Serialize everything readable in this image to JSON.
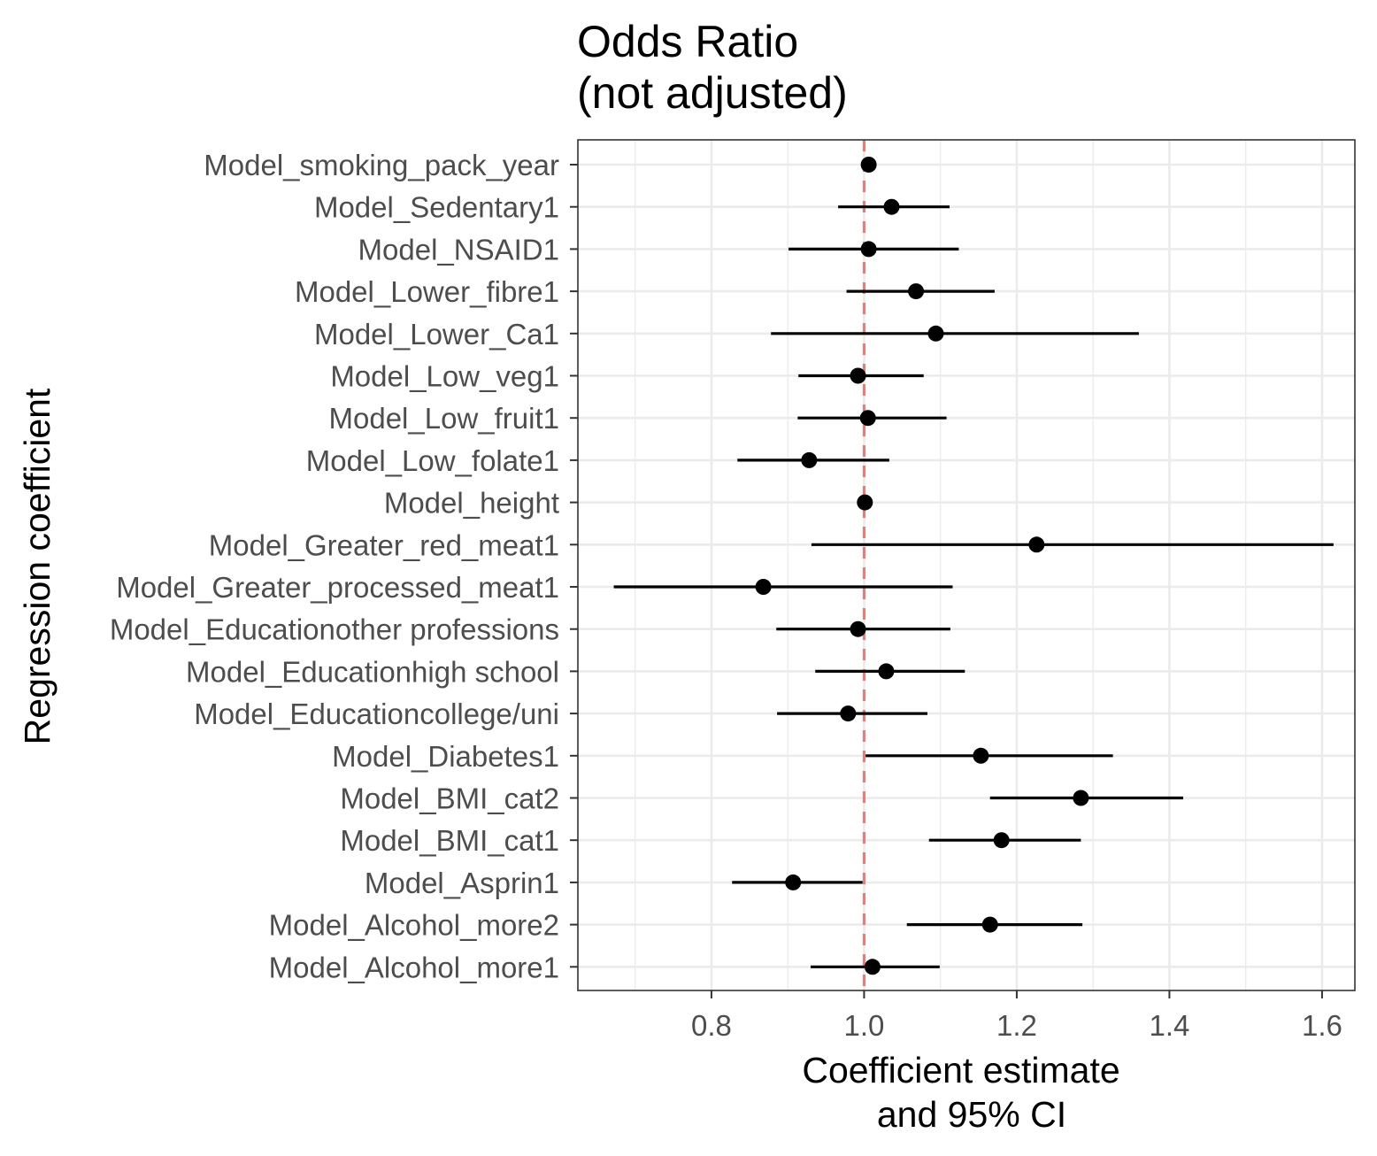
{
  "chart_data": {
    "type": "forest",
    "title": [
      "Odds Ratio",
      "(not adjusted)"
    ],
    "xlabel": [
      "Coefficient estimate",
      "and 95% CI"
    ],
    "ylabel": "Regression coefficient",
    "xlim": [
      0.625,
      1.643
    ],
    "xticks": [
      0.8,
      1.0,
      1.2,
      1.4,
      1.6
    ],
    "xtick_labels": [
      "0.8",
      "1.0",
      "1.2",
      "1.4",
      "1.6"
    ],
    "reference_line": {
      "x": 1.0,
      "color": "#F8766D",
      "style": "dashed"
    },
    "grid": true,
    "point_color": "#000000",
    "rows": [
      {
        "label": "Model_smoking_pack_year",
        "estimate": 1.006,
        "lower": 1.004,
        "upper": 1.008
      },
      {
        "label": "Model_Sedentary1",
        "estimate": 1.036,
        "lower": 0.966,
        "upper": 1.112
      },
      {
        "label": "Model_NSAID1",
        "estimate": 1.006,
        "lower": 0.901,
        "upper": 1.124
      },
      {
        "label": "Model_Lower_fibre1",
        "estimate": 1.068,
        "lower": 0.977,
        "upper": 1.171
      },
      {
        "label": "Model_Lower_Ca1",
        "estimate": 1.094,
        "lower": 0.878,
        "upper": 1.36
      },
      {
        "label": "Model_Low_veg1",
        "estimate": 0.992,
        "lower": 0.914,
        "upper": 1.078
      },
      {
        "label": "Model_Low_fruit1",
        "estimate": 1.005,
        "lower": 0.913,
        "upper": 1.108
      },
      {
        "label": "Model_Low_folate1",
        "estimate": 0.928,
        "lower": 0.834,
        "upper": 1.033
      },
      {
        "label": "Model_height",
        "estimate": 1.001,
        "lower": 0.999,
        "upper": 1.003
      },
      {
        "label": "Model_Greater_red_meat1",
        "estimate": 1.226,
        "lower": 0.931,
        "upper": 1.615
      },
      {
        "label": "Model_Greater_processed_meat1",
        "estimate": 0.868,
        "lower": 0.672,
        "upper": 1.116
      },
      {
        "label": "Model_Educationother professions",
        "estimate": 0.992,
        "lower": 0.885,
        "upper": 1.113
      },
      {
        "label": "Model_Educationhigh school",
        "estimate": 1.029,
        "lower": 0.936,
        "upper": 1.132
      },
      {
        "label": "Model_Educationcollege/uni",
        "estimate": 0.979,
        "lower": 0.886,
        "upper": 1.083
      },
      {
        "label": "Model_Diabetes1",
        "estimate": 1.153,
        "lower": 1.002,
        "upper": 1.326
      },
      {
        "label": "Model_BMI_cat2",
        "estimate": 1.284,
        "lower": 1.165,
        "upper": 1.418
      },
      {
        "label": "Model_BMI_cat1",
        "estimate": 1.18,
        "lower": 1.085,
        "upper": 1.284
      },
      {
        "label": "Model_Asprin1",
        "estimate": 0.907,
        "lower": 0.827,
        "upper": 0.998
      },
      {
        "label": "Model_Alcohol_more2",
        "estimate": 1.165,
        "lower": 1.056,
        "upper": 1.286
      },
      {
        "label": "Model_Alcohol_more1",
        "estimate": 1.011,
        "lower": 0.93,
        "upper": 1.099
      }
    ]
  }
}
